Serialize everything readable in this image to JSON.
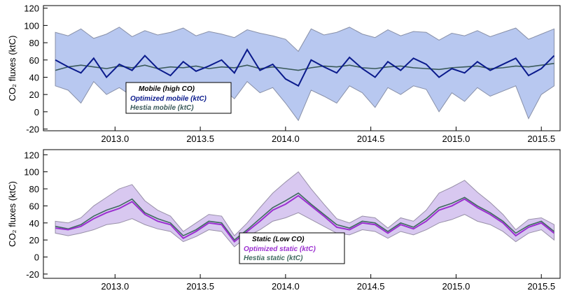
{
  "chart_data": [
    {
      "type": "line",
      "ylabel": "CO₂ fluxes (ktC)",
      "legend_title": "Mobile (high CO)",
      "xlim": [
        2012.58,
        2015.61
      ],
      "ylim": [
        -22,
        123
      ],
      "xticks": [
        {
          "value": 2013,
          "label": "2013.0"
        },
        {
          "value": 2013.5,
          "label": "2013.5"
        },
        {
          "value": 2014,
          "label": "2014.0"
        },
        {
          "value": 2014.5,
          "label": "2014.5"
        },
        {
          "value": 2015,
          "label": "2015.0"
        },
        {
          "value": 2015.5,
          "label": "2015.5"
        }
      ],
      "yticks": [
        -20,
        0,
        20,
        40,
        60,
        80,
        100,
        120
      ],
      "x": [
        2012.65,
        2012.725,
        2012.8,
        2012.875,
        2012.95,
        2013.025,
        2013.1,
        2013.175,
        2013.25,
        2013.325,
        2013.4,
        2013.475,
        2013.55,
        2013.625,
        2013.7,
        2013.775,
        2013.85,
        2013.925,
        2014.0,
        2014.075,
        2014.15,
        2014.225,
        2014.3,
        2014.375,
        2014.45,
        2014.525,
        2014.6,
        2014.675,
        2014.75,
        2014.825,
        2014.9,
        2014.975,
        2015.05,
        2015.125,
        2015.2,
        2015.275,
        2015.35,
        2015.425,
        2015.5,
        2015.575
      ],
      "band": {
        "color": "#b8c8f0",
        "edge": "#8890a8",
        "upper": [
          92,
          88,
          96,
          85,
          90,
          98,
          87,
          94,
          89,
          92,
          97,
          88,
          93,
          90,
          86,
          95,
          91,
          88,
          84,
          70,
          96,
          89,
          92,
          98,
          90,
          86,
          95,
          88,
          93,
          92,
          83,
          91,
          88,
          94,
          87,
          92,
          97,
          84,
          90,
          96
        ],
        "lower": [
          30,
          25,
          10,
          35,
          20,
          28,
          18,
          32,
          22,
          5,
          30,
          25,
          20,
          28,
          15,
          35,
          22,
          28,
          10,
          -10,
          25,
          18,
          10,
          30,
          22,
          5,
          28,
          20,
          30,
          26,
          0,
          22,
          12,
          28,
          18,
          24,
          30,
          -8,
          20,
          30
        ]
      },
      "series": [
        {
          "name": "Hestia mobile (ktC)",
          "color": "#3a5a5a",
          "values": [
            48,
            52,
            54,
            52,
            50,
            53,
            51,
            54,
            50,
            52,
            51,
            53,
            50,
            52,
            51,
            54,
            50,
            52,
            50,
            48,
            51,
            53,
            52,
            54,
            51,
            50,
            52,
            53,
            51,
            50,
            49,
            51,
            52,
            53,
            50,
            51,
            53,
            52,
            54,
            56
          ]
        },
        {
          "name": "Optimized mobile (ktC)",
          "color": "#0a1a8c",
          "values": [
            60,
            52,
            45,
            62,
            40,
            55,
            48,
            65,
            50,
            42,
            58,
            47,
            53,
            60,
            45,
            72,
            48,
            55,
            38,
            30,
            60,
            52,
            45,
            63,
            50,
            40,
            58,
            48,
            62,
            55,
            40,
            50,
            45,
            58,
            48,
            55,
            62,
            42,
            50,
            65
          ]
        }
      ]
    },
    {
      "type": "line",
      "ylabel": "CO₂ fluxes (ktC)",
      "legend_title": "Static (Low CO)",
      "xlim": [
        2012.58,
        2015.61
      ],
      "ylim": [
        -25,
        126
      ],
      "xticks": [
        {
          "value": 2013,
          "label": "2013.0"
        },
        {
          "value": 2013.5,
          "label": "2013.5"
        },
        {
          "value": 2014,
          "label": "2014.0"
        },
        {
          "value": 2014.5,
          "label": "2014.5"
        },
        {
          "value": 2015,
          "label": "2015.0"
        },
        {
          "value": 2015.5,
          "label": "2015.5"
        }
      ],
      "yticks": [
        -20,
        0,
        20,
        40,
        60,
        80,
        100,
        120
      ],
      "x": [
        2012.65,
        2012.725,
        2012.8,
        2012.875,
        2012.95,
        2013.025,
        2013.1,
        2013.175,
        2013.25,
        2013.325,
        2013.4,
        2013.475,
        2013.55,
        2013.625,
        2013.7,
        2013.775,
        2013.85,
        2013.925,
        2014.0,
        2014.075,
        2014.15,
        2014.225,
        2014.3,
        2014.375,
        2014.45,
        2014.525,
        2014.6,
        2014.675,
        2014.75,
        2014.825,
        2014.9,
        2014.975,
        2015.05,
        2015.125,
        2015.2,
        2015.275,
        2015.35,
        2015.425,
        2015.5,
        2015.575
      ],
      "band": {
        "color": "#d8c8f0",
        "edge": "#9890a8",
        "upper": [
          42,
          40,
          46,
          60,
          70,
          80,
          85,
          66,
          55,
          48,
          30,
          40,
          50,
          48,
          25,
          40,
          58,
          75,
          88,
          100,
          80,
          62,
          45,
          40,
          48,
          46,
          34,
          46,
          42,
          55,
          75,
          82,
          90,
          76,
          64,
          50,
          32,
          44,
          46,
          38
        ],
        "lower": [
          28,
          25,
          28,
          32,
          38,
          40,
          45,
          38,
          33,
          30,
          18,
          24,
          32,
          30,
          12,
          24,
          32,
          42,
          46,
          52,
          44,
          36,
          28,
          26,
          32,
          30,
          22,
          30,
          26,
          32,
          40,
          44,
          50,
          42,
          38,
          30,
          18,
          28,
          32,
          20
        ]
      },
      "series": [
        {
          "name": "Hestia static (ktC)",
          "color": "#3f6a5f",
          "values": [
            36,
            33,
            38,
            48,
            55,
            60,
            68,
            52,
            45,
            40,
            25,
            32,
            42,
            40,
            20,
            32,
            45,
            58,
            66,
            75,
            62,
            50,
            38,
            34,
            42,
            40,
            30,
            40,
            35,
            45,
            58,
            63,
            70,
            60,
            52,
            42,
            28,
            37,
            42,
            30
          ]
        },
        {
          "name": "Optimized static (ktC)",
          "color": "#9b30d0",
          "values": [
            34,
            32,
            36,
            45,
            52,
            57,
            65,
            50,
            42,
            38,
            22,
            30,
            40,
            38,
            18,
            30,
            42,
            55,
            62,
            72,
            60,
            48,
            35,
            32,
            40,
            38,
            28,
            38,
            33,
            42,
            55,
            60,
            68,
            58,
            50,
            40,
            25,
            35,
            40,
            28
          ]
        }
      ]
    }
  ]
}
